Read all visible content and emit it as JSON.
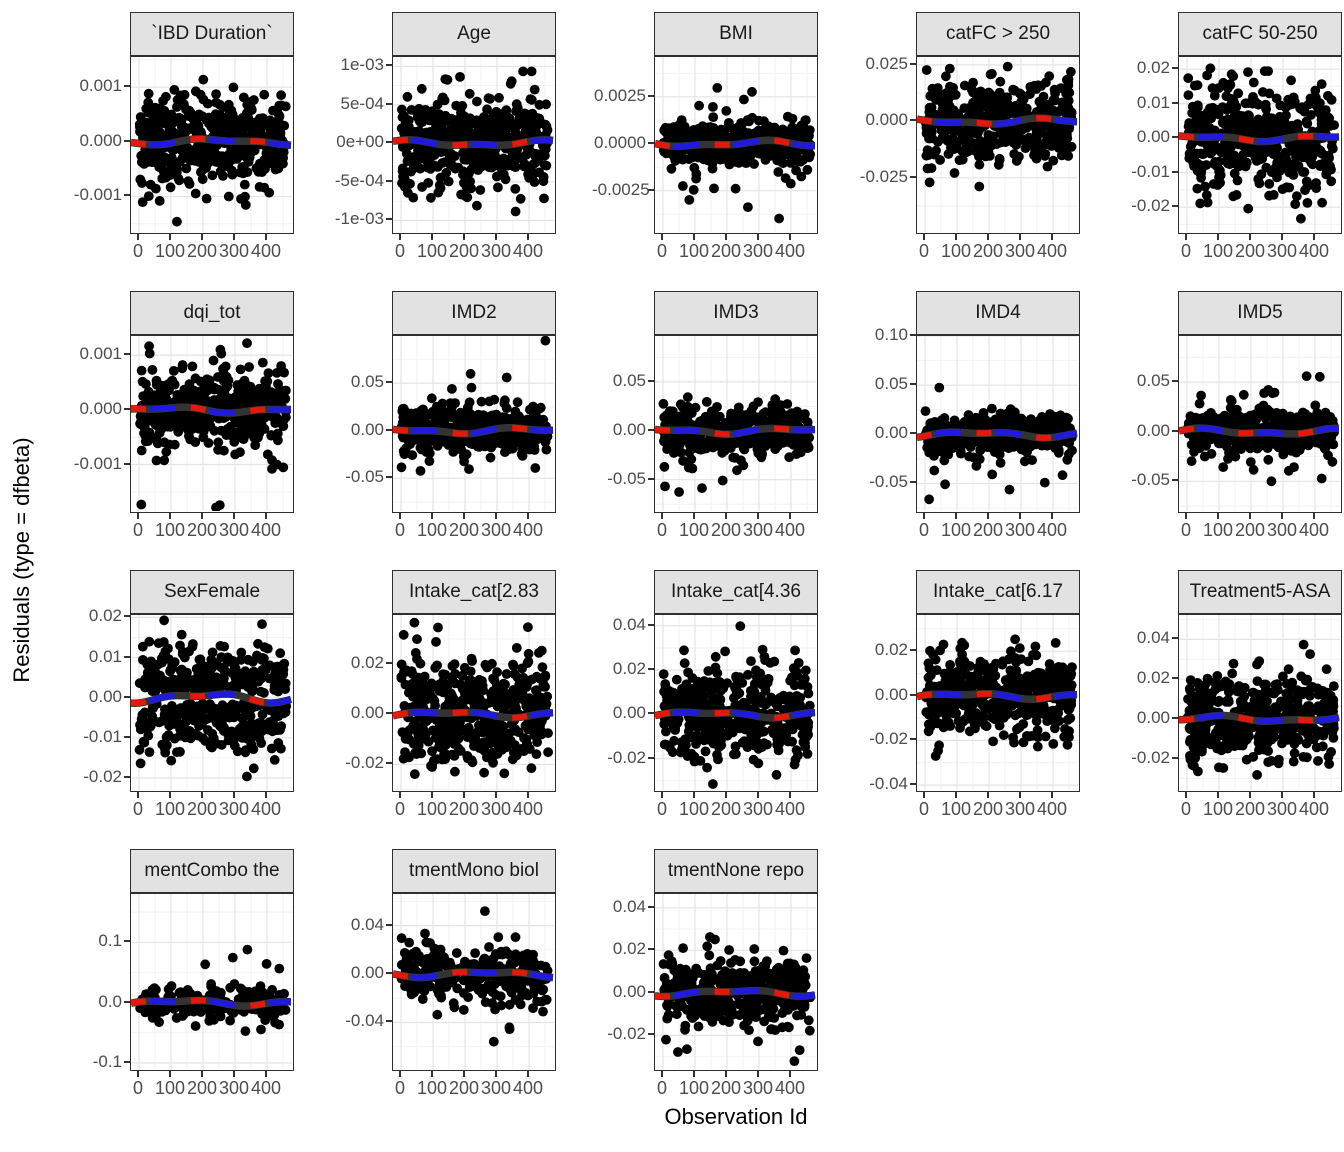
{
  "figure": {
    "y_axis_label": "Residuals (type = dfbeta)",
    "x_axis_label": "Observation Id",
    "colors": {
      "point": "#000000",
      "smoother_base": "#333333",
      "smoother_red": "#e3190b",
      "smoother_blue": "#201adf",
      "strip_bg": "#e2e2e2",
      "panel_border": "#2f2f2f",
      "grid_major": "#e4e4e4",
      "grid_minor": "#f2f2f2",
      "tick_text": "#4d4d4d",
      "tick_mark": "#333333"
    }
  },
  "chart_data": {
    "type": "scatter",
    "layout": "facet_grid_5_columns",
    "title": "",
    "xlabel": "Observation Id",
    "ylabel": "Residuals (type = dfbeta)",
    "x": {
      "tick_labels": [
        "0",
        "100",
        "200",
        "300",
        "400"
      ],
      "tick_values": [
        0,
        100,
        200,
        300,
        400
      ],
      "minor_values": [
        50,
        150,
        250,
        350,
        450
      ],
      "lim": [
        -25,
        478
      ],
      "data_range": [
        1,
        460
      ]
    },
    "smoother": {
      "description": "near-flat smooth trend at y = 0 in every facet",
      "pattern": "alternating red and blue dashes over a thick dark-gray line",
      "base_color": "#333333",
      "red_color": "#e3190b",
      "blue_color": "#201adf"
    },
    "grid": true,
    "legend": "none",
    "facets": [
      {
        "title": "`IBD Duration`",
        "seed": 11,
        "n": 460,
        "core_sd": 0.00038,
        "tail_frac": 0.1,
        "tail_sd": 0.00075,
        "band_gap": 0,
        "ylim": [
          -0.00165,
          0.00155
        ],
        "y_tick_labels": [
          "0.001",
          "0.000",
          "-0.001"
        ],
        "y_tick_values": [
          0.001,
          0,
          -0.001
        ]
      },
      {
        "title": "Age",
        "seed": 22,
        "n": 460,
        "core_sd": 0.00028,
        "tail_frac": 0.1,
        "tail_sd": 0.00055,
        "band_gap": 0,
        "ylim": [
          -0.00115,
          0.00112
        ],
        "y_tick_labels": [
          "1e-03",
          "5e-04",
          "0e+00",
          "-5e-04",
          "-1e-03"
        ],
        "y_tick_values": [
          0.001,
          0.0005,
          0,
          -0.0005,
          -0.001
        ]
      },
      {
        "title": "BMI",
        "seed": 33,
        "n": 460,
        "core_sd": 0.00055,
        "tail_frac": 0.07,
        "tail_sd": 0.0016,
        "band_gap": 0,
        "ylim": [
          -0.0047,
          0.00462
        ],
        "y_tick_labels": [
          "0.0025",
          "0.0000",
          "-0.0025"
        ],
        "y_tick_values": [
          0.0025,
          0,
          -0.0025
        ]
      },
      {
        "title": "catFC > 250",
        "seed": 44,
        "n": 460,
        "core_sd": 0.0085,
        "tail_frac": 0.08,
        "tail_sd": 0.018,
        "band_gap": 0,
        "ylim": [
          -0.049,
          0.0285
        ],
        "y_tick_labels": [
          "0.025",
          "0.000",
          "-0.025"
        ],
        "y_tick_values": [
          0.025,
          0,
          -0.025
        ]
      },
      {
        "title": "catFC 50-250",
        "seed": 55,
        "n": 470,
        "core_sd": 0.0078,
        "tail_frac": 0.06,
        "tail_sd": 0.014,
        "band_gap": 0,
        "ylim": [
          -0.0272,
          0.0235
        ],
        "y_tick_labels": [
          "0.02",
          "0.01",
          "0.00",
          "-0.01",
          "-0.02"
        ],
        "y_tick_values": [
          0.02,
          0.01,
          0,
          -0.01,
          -0.02
        ]
      },
      {
        "title": "dqi_tot",
        "seed": 66,
        "n": 460,
        "core_sd": 0.00032,
        "tail_frac": 0.07,
        "tail_sd": 0.0007,
        "band_gap": 0,
        "ylim": [
          -0.00185,
          0.00135
        ],
        "y_tick_labels": [
          "0.001",
          "0.000",
          "-0.001"
        ],
        "y_tick_values": [
          0.001,
          0,
          -0.001
        ]
      },
      {
        "title": "IMD2",
        "seed": 77,
        "n": 450,
        "core_sd": 0.012,
        "tail_frac": 0.1,
        "tail_sd": 0.032,
        "band_gap": 0,
        "ylim": [
          -0.0845,
          0.0995
        ],
        "y_tick_labels": [
          "0.05",
          "0.00",
          "-0.05"
        ],
        "y_tick_values": [
          0.05,
          0,
          -0.05
        ]
      },
      {
        "title": "IMD3",
        "seed": 88,
        "n": 450,
        "core_sd": 0.012,
        "tail_frac": 0.1,
        "tail_sd": 0.03,
        "band_gap": 0,
        "ylim": [
          -0.082,
          0.097
        ],
        "y_tick_labels": [
          "0.05",
          "0.00",
          "-0.05"
        ],
        "y_tick_values": [
          0.05,
          0,
          -0.05
        ]
      },
      {
        "title": "IMD4",
        "seed": 99,
        "n": 450,
        "core_sd": 0.01,
        "tail_frac": 0.08,
        "tail_sd": 0.03,
        "band_gap": 0,
        "ylim": [
          -0.078,
          0.1
        ],
        "y_tick_labels": [
          "0.10",
          "0.05",
          "0.00",
          "-0.05"
        ],
        "y_tick_values": [
          0.1,
          0.05,
          0,
          -0.05
        ]
      },
      {
        "title": "IMD5",
        "seed": 110,
        "n": 450,
        "core_sd": 0.01,
        "tail_frac": 0.08,
        "tail_sd": 0.028,
        "band_gap": 0,
        "ylim": [
          -0.08,
          0.0965
        ],
        "y_tick_labels": [
          "0.05",
          "0.00",
          "-0.05"
        ],
        "y_tick_values": [
          0.05,
          0,
          -0.05
        ]
      },
      {
        "title": "SexFemale",
        "seed": 121,
        "n": 470,
        "core_sd": 0.006,
        "tail_frac": 0,
        "tail_sd": 0,
        "band_gap": 0.0012,
        "ylim": [
          -0.023,
          0.0206
        ],
        "y_tick_labels": [
          "0.02",
          "0.01",
          "0.00",
          "-0.01",
          "-0.02"
        ],
        "y_tick_values": [
          0.02,
          0.01,
          0,
          -0.01,
          -0.02
        ]
      },
      {
        "title": "Intake_cat[2.83",
        "seed": 132,
        "n": 460,
        "core_sd": 0.0105,
        "tail_frac": 0.04,
        "tail_sd": 0.018,
        "band_gap": 0,
        "ylim": [
          -0.0302,
          0.0395
        ],
        "y_tick_labels": [
          "0.02",
          "0.00",
          "-0.02"
        ],
        "y_tick_values": [
          0.02,
          0,
          -0.02
        ]
      },
      {
        "title": "Intake_cat[4.36",
        "seed": 143,
        "n": 460,
        "core_sd": 0.01,
        "tail_frac": 0.04,
        "tail_sd": 0.018,
        "band_gap": 0,
        "ylim": [
          -0.0342,
          0.0449
        ],
        "y_tick_labels": [
          "0.04",
          "0.02",
          "0.00",
          "-0.02"
        ],
        "y_tick_values": [
          0.04,
          0.02,
          0,
          -0.02
        ]
      },
      {
        "title": "Intake_cat[6.17",
        "seed": 154,
        "n": 460,
        "core_sd": 0.009,
        "tail_frac": 0.04,
        "tail_sd": 0.016,
        "band_gap": 0,
        "ylim": [
          -0.0422,
          0.0362
        ],
        "y_tick_labels": [
          "0.02",
          "0.00",
          "-0.02",
          "-0.04"
        ],
        "y_tick_values": [
          0.02,
          0,
          -0.02,
          -0.04
        ]
      },
      {
        "title": "Treatment5-ASA",
        "seed": 165,
        "n": 440,
        "core_sd": 0.0095,
        "tail_frac": 0.05,
        "tail_sd": 0.018,
        "band_gap": 0,
        "ylim": [
          -0.0358,
          0.0523
        ],
        "y_tick_labels": [
          "0.04",
          "0.02",
          "0.00",
          "-0.02"
        ],
        "y_tick_values": [
          0.04,
          0.02,
          0,
          -0.02
        ]
      },
      {
        "title": "mentCombo the",
        "seed": 176,
        "n": 210,
        "core_sd": 0.013,
        "tail_frac": 0.05,
        "tail_sd": 0.07,
        "band_gap": 0,
        "ylim": [
          -0.11,
          0.18
        ],
        "y_tick_labels": [
          "0.1",
          "0.0",
          "-0.1"
        ],
        "y_tick_values": [
          0.1,
          0,
          -0.1
        ]
      },
      {
        "title": "tmentMono biol",
        "seed": 187,
        "n": 260,
        "core_sd": 0.013,
        "tail_frac": 0.07,
        "tail_sd": 0.03,
        "band_gap": 0,
        "ylim": [
          -0.0784,
          0.0661
        ],
        "y_tick_labels": [
          "0.04",
          "0.00",
          "-0.04"
        ],
        "y_tick_values": [
          0.04,
          0,
          -0.04
        ]
      },
      {
        "title": "tmentNone repo",
        "seed": 198,
        "n": 420,
        "core_sd": 0.0075,
        "tail_frac": 0.07,
        "tail_sd": 0.016,
        "band_gap": 0,
        "ylim": [
          -0.0358,
          0.0465
        ],
        "y_tick_labels": [
          "0.04",
          "0.02",
          "0.00",
          "-0.02"
        ],
        "y_tick_values": [
          0.04,
          0.02,
          0,
          -0.02
        ]
      }
    ]
  }
}
